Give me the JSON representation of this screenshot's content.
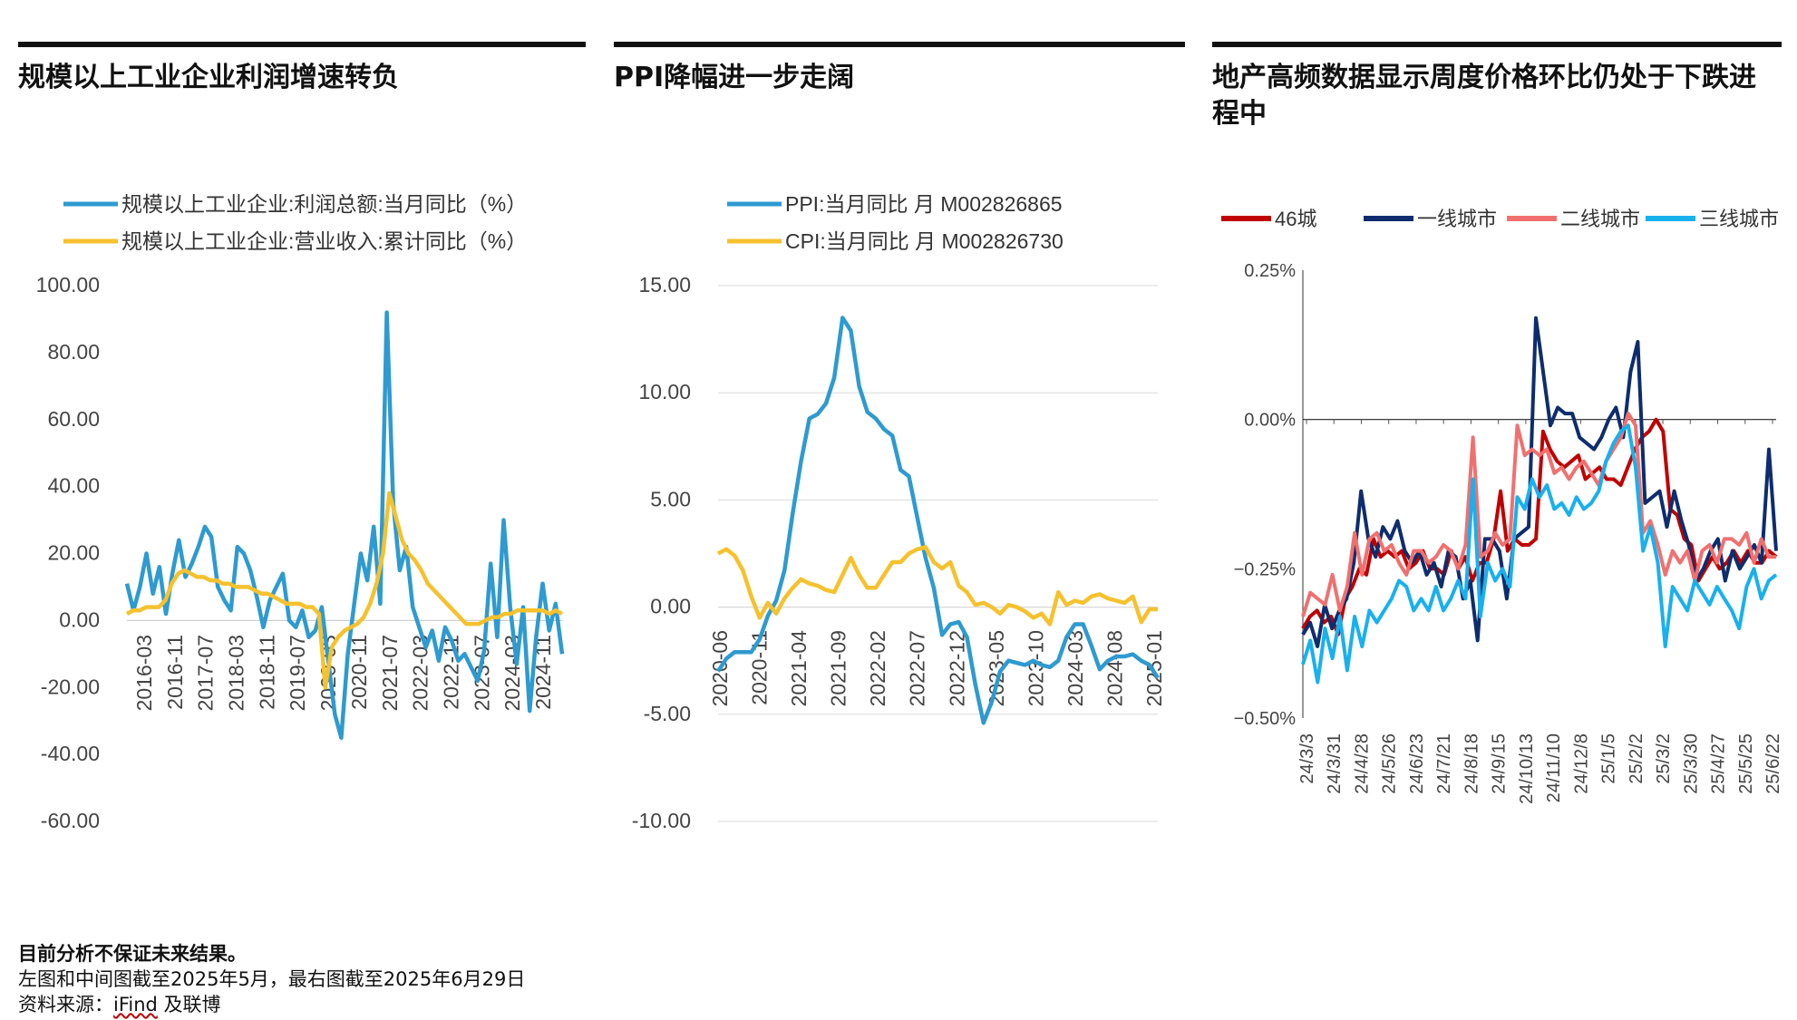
{
  "panels": [
    {
      "title": "规模以上工业企业利润增速转负",
      "legend": [
        {
          "label": "规模以上工业企业:利润总额:当月同比（%）",
          "color": "#2e9ad0"
        },
        {
          "label": "规模以上工业企业:营业收入:累计同比（%）",
          "color": "#f5c12e"
        }
      ]
    },
    {
      "title": "PPI降幅进一步走阔",
      "legend": [
        {
          "label": "PPI:当月同比 月 M002826865",
          "color": "#2e9ad0"
        },
        {
          "label": "CPI:当月同比 月 M002826730",
          "color": "#f5c12e"
        }
      ]
    },
    {
      "title": "地产高频数据显示周度价格环比仍处于下跌进程中",
      "legend": [
        {
          "label": "46城",
          "color": "#c00000"
        },
        {
          "label": "一线城市",
          "color": "#0e2d6e"
        },
        {
          "label": "二线城市",
          "color": "#f07070"
        },
        {
          "label": "三线城市",
          "color": "#19b0ee"
        }
      ]
    }
  ],
  "footer": {
    "note": "目前分析不保证未来结果。",
    "line2": "左图和中间图截至2025年5月，最右图截至2025年6月29日",
    "source_prefix": "资料来源：",
    "source_ifind": "iFind",
    "source_suffix": " 及联博"
  },
  "chart_data": [
    {
      "type": "line",
      "title": "规模以上工业企业利润增速转负",
      "ylim": [
        -60,
        100
      ],
      "yticks": [
        "100.00",
        "80.00",
        "60.00",
        "40.00",
        "20.00",
        "0.00",
        "-20.00",
        "-40.00",
        "-60.00"
      ],
      "xticks": [
        "2016-03",
        "2016-11",
        "2017-07",
        "2018-03",
        "2018-11",
        "2019-07",
        "2020-03",
        "2020-11",
        "2021-07",
        "2022-03",
        "2022-11",
        "2023-07",
        "2024-03",
        "2024-11"
      ],
      "grid": false,
      "legend_position": "top",
      "series": [
        {
          "name": "规模以上工业企业:利润总额:当月同比（%）",
          "color": "#2e9ad0",
          "values": [
            11,
            3,
            10,
            20,
            8,
            16,
            2,
            14,
            24,
            13,
            17,
            22,
            28,
            25,
            10,
            6,
            3,
            22,
            20,
            15,
            7,
            -2,
            6,
            10,
            14,
            0,
            -2,
            3,
            -5,
            -3,
            4,
            -12,
            -28,
            -35,
            -10,
            5,
            20,
            12,
            28,
            5,
            92,
            35,
            15,
            22,
            4,
            -2,
            -8,
            -3,
            -12,
            -2,
            -6,
            -12,
            -10,
            -14,
            -18,
            -9,
            17,
            -5,
            30,
            4,
            -13,
            4,
            -27,
            -5,
            11,
            -3,
            5,
            -10
          ]
        },
        {
          "name": "规模以上工业企业:营业收入:累计同比（%）",
          "color": "#f5c12e",
          "values": [
            2,
            3,
            3,
            4,
            4,
            4,
            6,
            11,
            14,
            15,
            14,
            13,
            13,
            12,
            12,
            11,
            11,
            10,
            10,
            10,
            9,
            8,
            8,
            7,
            6,
            5,
            5,
            5,
            4,
            4,
            2,
            -20,
            -8,
            -5,
            -3,
            -2,
            -1,
            1,
            5,
            11,
            20,
            38,
            31,
            24,
            20,
            18,
            15,
            11,
            9,
            7,
            5,
            3,
            1,
            -1,
            -1,
            -1,
            0,
            1,
            1,
            2,
            2,
            3,
            3,
            3,
            3,
            3,
            2,
            3,
            2
          ]
        }
      ]
    },
    {
      "type": "line",
      "title": "PPI降幅进一步走阔",
      "ylim": [
        -10,
        15
      ],
      "yticks": [
        "15.00",
        "10.00",
        "5.00",
        "0.00",
        "-5.00",
        "-10.00"
      ],
      "xticks": [
        "2020-06",
        "2020-11",
        "2021-04",
        "2021-09",
        "2022-02",
        "2022-07",
        "2022-12",
        "2023-05",
        "2023-10",
        "2024-03",
        "2024-08",
        "2025-01"
      ],
      "grid": true,
      "legend_position": "top",
      "series": [
        {
          "name": "PPI:当月同比 月 M002826865",
          "color": "#2e9ad0",
          "values": [
            -3.0,
            -2.4,
            -2.1,
            -2.1,
            -2.1,
            -1.5,
            -0.4,
            0.3,
            1.7,
            4.4,
            6.8,
            8.8,
            9.0,
            9.5,
            10.7,
            13.5,
            12.9,
            10.3,
            9.1,
            8.8,
            8.3,
            8.0,
            6.4,
            6.1,
            4.2,
            2.3,
            0.9,
            -1.3,
            -0.8,
            -0.7,
            -1.4,
            -3.6,
            -5.4,
            -4.4,
            -3.0,
            -2.5,
            -2.6,
            -2.7,
            -2.5,
            -2.7,
            -2.8,
            -2.5,
            -1.4,
            -0.8,
            -0.8,
            -1.8,
            -2.9,
            -2.5,
            -2.3,
            -2.3,
            -2.2,
            -2.5,
            -2.7,
            -3.3
          ]
        },
        {
          "name": "CPI:当月同比 月 M002826730",
          "color": "#f5c12e",
          "values": [
            2.5,
            2.7,
            2.4,
            1.7,
            0.5,
            -0.5,
            0.2,
            -0.3,
            0.4,
            0.9,
            1.3,
            1.1,
            1.0,
            0.8,
            0.7,
            1.5,
            2.3,
            1.5,
            0.9,
            0.9,
            1.5,
            2.1,
            2.1,
            2.5,
            2.7,
            2.8,
            2.1,
            1.8,
            2.1,
            1.0,
            0.7,
            0.1,
            0.2,
            0.0,
            -0.3,
            0.1,
            0.0,
            -0.2,
            -0.5,
            -0.3,
            -0.8,
            0.7,
            0.1,
            0.3,
            0.2,
            0.5,
            0.6,
            0.4,
            0.3,
            0.2,
            0.5,
            -0.7,
            -0.1,
            -0.1
          ]
        }
      ]
    },
    {
      "type": "line",
      "title": "地产高频数据显示周度价格环比仍处于下跌进程中",
      "ylim": [
        -0.5,
        0.25
      ],
      "yticks": [
        "0.25%",
        "0.00%",
        "−0.25%",
        "−0.50%"
      ],
      "xticks": [
        "24/3/3",
        "24/3/31",
        "24/4/28",
        "24/5/26",
        "24/6/23",
        "24/7/21",
        "24/8/18",
        "24/9/15",
        "24/10/13",
        "24/11/10",
        "24/12/8",
        "25/1/5",
        "25/2/2",
        "25/3/2",
        "25/3/30",
        "25/4/27",
        "25/5/25",
        "25/6/22"
      ],
      "legend_position": "top",
      "series": [
        {
          "name": "46城",
          "color": "#c00000",
          "values": [
            -0.35,
            -0.33,
            -0.32,
            -0.34,
            -0.33,
            -0.36,
            -0.3,
            -0.28,
            -0.25,
            -0.26,
            -0.2,
            -0.23,
            -0.22,
            -0.23,
            -0.22,
            -0.25,
            -0.24,
            -0.22,
            -0.25,
            -0.25,
            -0.26,
            -0.22,
            -0.25,
            -0.23,
            -0.27,
            -0.24,
            -0.24,
            -0.2,
            -0.12,
            -0.22,
            -0.2,
            -0.21,
            -0.21,
            -0.2,
            -0.02,
            -0.05,
            -0.07,
            -0.08,
            -0.07,
            -0.06,
            -0.1,
            -0.09,
            -0.08,
            -0.1,
            -0.1,
            -0.11,
            -0.08,
            -0.05,
            -0.03,
            -0.02,
            0.0,
            -0.02,
            -0.15,
            -0.16,
            -0.2,
            -0.21,
            -0.27,
            -0.25,
            -0.23,
            -0.25,
            -0.24,
            -0.22,
            -0.24,
            -0.22,
            -0.24,
            -0.24,
            -0.22,
            -0.23
          ]
        },
        {
          "name": "一线城市",
          "color": "#0e2d6e",
          "values": [
            -0.36,
            -0.34,
            -0.38,
            -0.31,
            -0.35,
            -0.32,
            -0.3,
            -0.24,
            -0.12,
            -0.2,
            -0.23,
            -0.18,
            -0.2,
            -0.17,
            -0.22,
            -0.24,
            -0.22,
            -0.26,
            -0.24,
            -0.28,
            -0.22,
            -0.23,
            -0.3,
            -0.27,
            -0.37,
            -0.2,
            -0.2,
            -0.22,
            -0.3,
            -0.2,
            -0.19,
            -0.18,
            0.17,
            0.08,
            -0.01,
            0.02,
            0.01,
            0.01,
            -0.03,
            -0.04,
            -0.05,
            -0.03,
            0.0,
            0.02,
            -0.03,
            0.08,
            0.13,
            -0.14,
            -0.13,
            -0.12,
            -0.18,
            -0.12,
            -0.17,
            -0.21,
            -0.27,
            -0.25,
            -0.22,
            -0.2,
            -0.27,
            -0.22,
            -0.25,
            -0.23,
            -0.21,
            -0.24,
            -0.05,
            -0.22
          ]
        },
        {
          "name": "二线城市",
          "color": "#f07070",
          "values": [
            -0.33,
            -0.29,
            -0.3,
            -0.31,
            -0.26,
            -0.32,
            -0.28,
            -0.19,
            -0.26,
            -0.2,
            -0.19,
            -0.22,
            -0.21,
            -0.24,
            -0.26,
            -0.22,
            -0.22,
            -0.24,
            -0.23,
            -0.21,
            -0.22,
            -0.25,
            -0.21,
            -0.03,
            -0.23,
            -0.22,
            -0.19,
            -0.21,
            -0.2,
            -0.01,
            -0.06,
            -0.05,
            -0.06,
            -0.05,
            -0.09,
            -0.08,
            -0.1,
            -0.08,
            -0.07,
            -0.09,
            -0.11,
            -0.07,
            -0.05,
            -0.03,
            0.01,
            -0.01,
            -0.19,
            -0.17,
            -0.21,
            -0.26,
            -0.22,
            -0.24,
            -0.22,
            -0.27,
            -0.22,
            -0.21,
            -0.24,
            -0.2,
            -0.2,
            -0.21,
            -0.19,
            -0.24,
            -0.2,
            -0.23,
            -0.23
          ]
        },
        {
          "name": "三线城市",
          "color": "#19b0ee",
          "values": [
            -0.41,
            -0.37,
            -0.44,
            -0.35,
            -0.4,
            -0.33,
            -0.42,
            -0.33,
            -0.38,
            -0.32,
            -0.34,
            -0.32,
            -0.3,
            -0.27,
            -0.28,
            -0.32,
            -0.3,
            -0.32,
            -0.28,
            -0.32,
            -0.3,
            -0.27,
            -0.3,
            -0.1,
            -0.33,
            -0.24,
            -0.27,
            -0.25,
            -0.28,
            -0.13,
            -0.15,
            -0.1,
            -0.13,
            -0.11,
            -0.15,
            -0.14,
            -0.16,
            -0.13,
            -0.15,
            -0.14,
            -0.12,
            -0.07,
            -0.04,
            -0.02,
            -0.01,
            -0.08,
            -0.22,
            -0.18,
            -0.24,
            -0.38,
            -0.28,
            -0.3,
            -0.32,
            -0.27,
            -0.29,
            -0.31,
            -0.28,
            -0.3,
            -0.32,
            -0.35,
            -0.28,
            -0.25,
            -0.3,
            -0.27,
            -0.26
          ]
        }
      ]
    }
  ]
}
